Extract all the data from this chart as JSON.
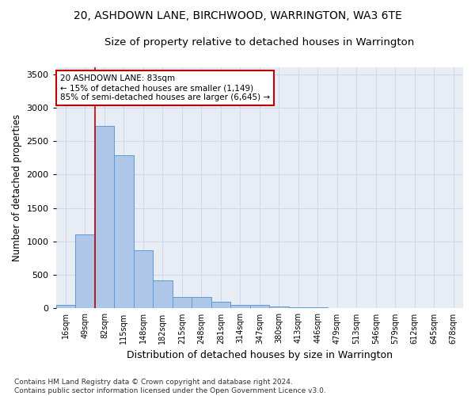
{
  "title": "20, ASHDOWN LANE, BIRCHWOOD, WARRINGTON, WA3 6TE",
  "subtitle": "Size of property relative to detached houses in Warrington",
  "xlabel": "Distribution of detached houses by size in Warrington",
  "ylabel": "Number of detached properties",
  "bar_labels": [
    "16sqm",
    "49sqm",
    "82sqm",
    "115sqm",
    "148sqm",
    "182sqm",
    "215sqm",
    "248sqm",
    "281sqm",
    "314sqm",
    "347sqm",
    "380sqm",
    "413sqm",
    "446sqm",
    "479sqm",
    "513sqm",
    "546sqm",
    "579sqm",
    "612sqm",
    "645sqm",
    "678sqm"
  ],
  "bar_values": [
    50,
    1110,
    2730,
    2290,
    875,
    425,
    175,
    165,
    95,
    55,
    50,
    28,
    20,
    15,
    0,
    0,
    0,
    0,
    0,
    0,
    0
  ],
  "bar_color": "#aec6e8",
  "bar_edge_color": "#5b9bd5",
  "highlight_bar_idx": 2,
  "highlight_color": "#c00000",
  "annotation_line1": "20 ASHDOWN LANE: 83sqm",
  "annotation_line2": "← 15% of detached houses are smaller (1,149)",
  "annotation_line3": "85% of semi-detached houses are larger (6,645) →",
  "annotation_box_color": "#c00000",
  "ylim": [
    0,
    3600
  ],
  "yticks": [
    0,
    500,
    1000,
    1500,
    2000,
    2500,
    3000,
    3500
  ],
  "grid_color": "#d0d8ea",
  "background_color": "#e8edf5",
  "footer": "Contains HM Land Registry data © Crown copyright and database right 2024.\nContains public sector information licensed under the Open Government Licence v3.0.",
  "title_fontsize": 10,
  "subtitle_fontsize": 9.5,
  "xlabel_fontsize": 9,
  "ylabel_fontsize": 8.5,
  "tick_fontsize": 8,
  "footer_fontsize": 6.5
}
